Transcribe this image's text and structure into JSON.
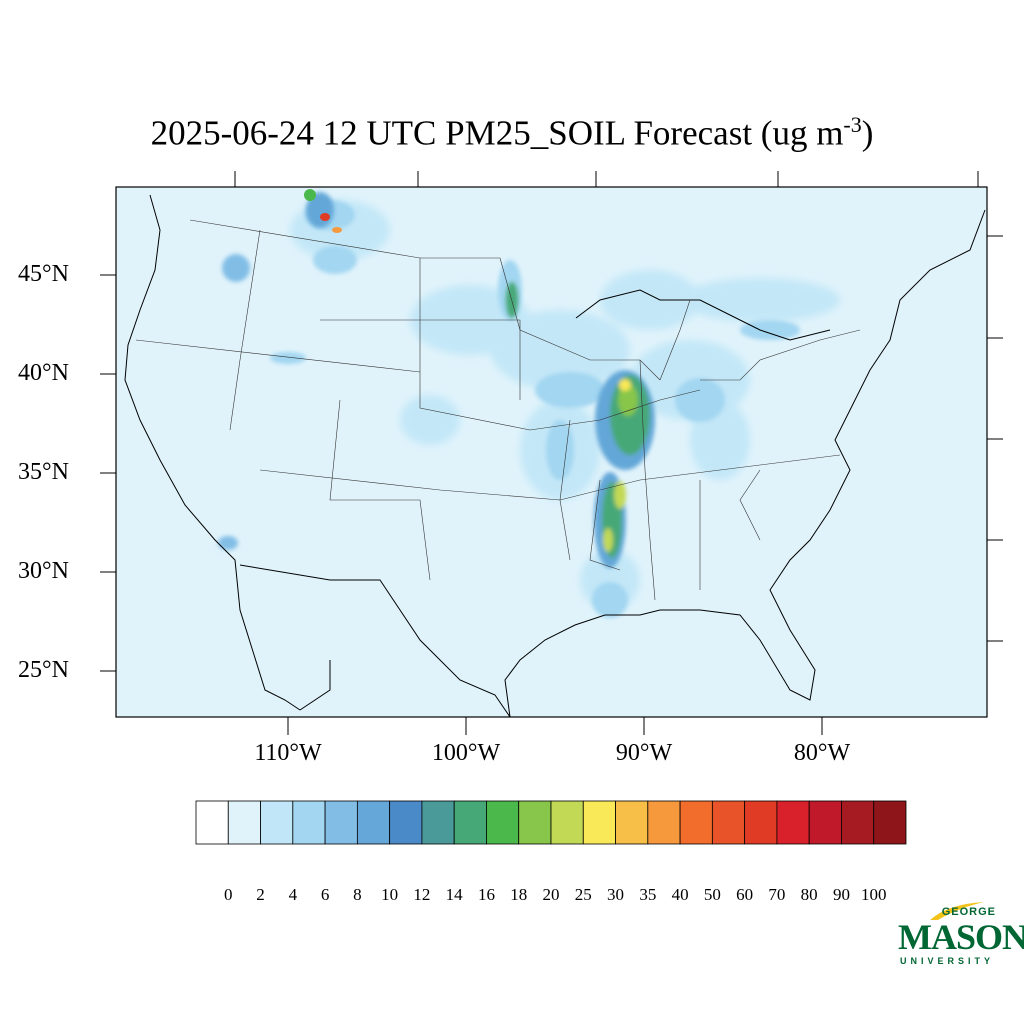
{
  "title_main": "2025-06-24 12 UTC PM25_SOIL Forecast (ug m",
  "title_sup": "-3",
  "title_close": ")",
  "lat_labels": [
    "45°N",
    "40°N",
    "35°N",
    "30°N",
    "25°N"
  ],
  "lon_labels": [
    "110°W",
    "100°W",
    "90°W",
    "80°W"
  ],
  "legend": {
    "levels": [
      "0",
      "2",
      "4",
      "6",
      "8",
      "10",
      "12",
      "14",
      "16",
      "18",
      "20",
      "25",
      "30",
      "35",
      "40",
      "50",
      "60",
      "70",
      "80",
      "90",
      "100"
    ],
    "colors": [
      "#ffffff",
      "#e0f3fb",
      "#c0e6f7",
      "#a2d6f1",
      "#82bde6",
      "#64a7d8",
      "#4b8ac8",
      "#4a9a9a",
      "#46a877",
      "#4ab84a",
      "#87c64a",
      "#c2d955",
      "#f9e858",
      "#f7be48",
      "#f6983c",
      "#f26c2c",
      "#e8532a",
      "#e03b25",
      "#d8212a",
      "#c0192a",
      "#a61a22",
      "#8e1519"
    ]
  },
  "logo": {
    "top": "GEORGE",
    "main": "MASON",
    "bottom": "UNIVERSITY"
  }
}
